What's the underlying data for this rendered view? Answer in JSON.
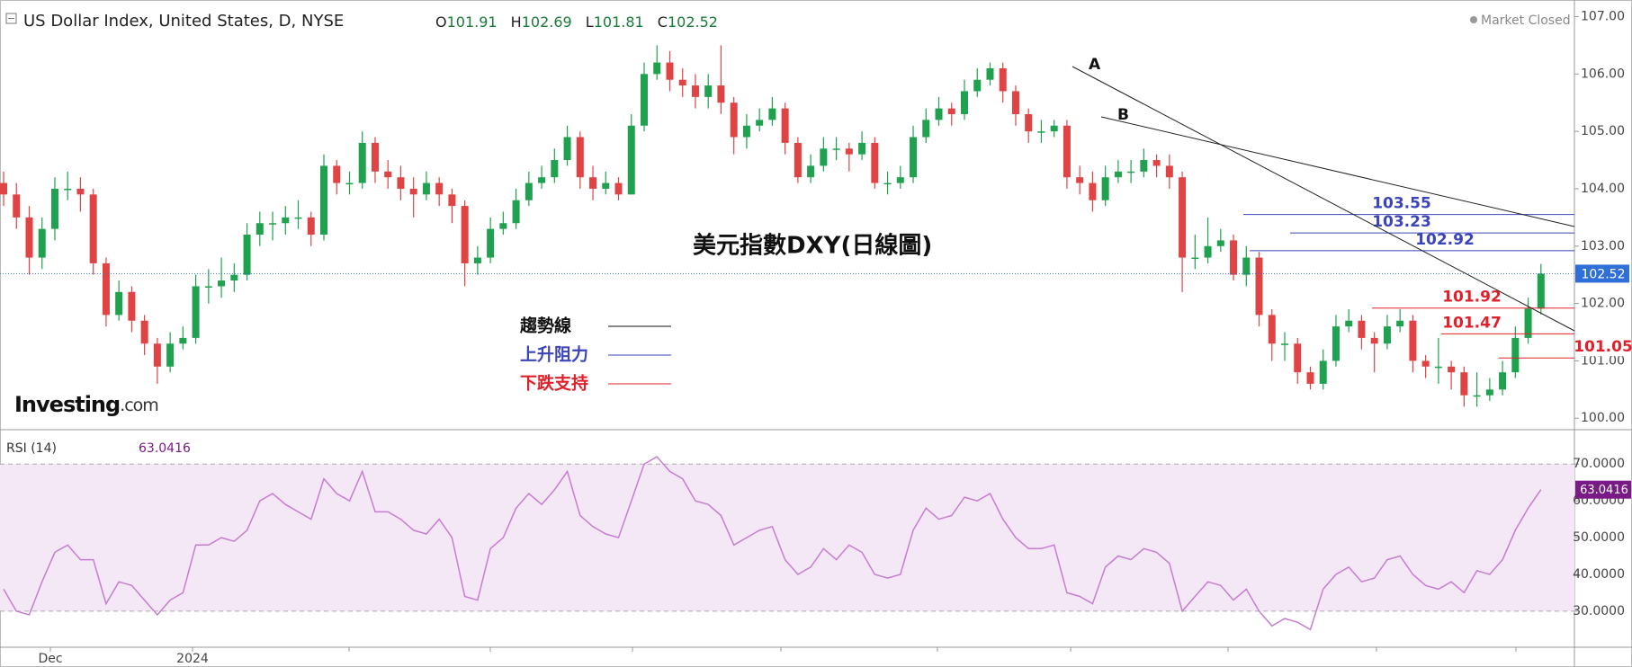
{
  "header": {
    "title": "US Dollar Index, United States, D, NYSE",
    "ohlc_labels": [
      "O",
      "H",
      "L",
      "C"
    ],
    "market_status": "Market Closed",
    "logo": "Investing",
    "logo_suffix": ".com"
  },
  "chart_data": [
    {
      "type": "candlestick",
      "title": "美元指數DXY(日線圖)",
      "up_color": "#1fa14f",
      "down_color": "#e04343",
      "open": [
        104.1,
        103.9,
        103.5,
        102.8,
        103.3,
        104.0,
        104.0,
        103.9,
        102.7,
        101.8,
        102.2,
        101.7,
        101.3,
        100.9,
        101.3,
        101.4,
        102.3,
        102.3,
        102.4,
        102.5,
        103.2,
        103.4,
        103.4,
        103.5,
        103.5,
        103.2,
        104.4,
        104.1,
        104.1,
        104.8,
        104.3,
        104.2,
        104.0,
        103.9,
        104.1,
        103.9,
        103.7,
        102.7,
        102.8,
        103.3,
        103.4,
        103.8,
        104.1,
        104.2,
        104.5,
        104.9,
        104.2,
        104.0,
        104.1,
        103.9,
        105.1,
        106.0,
        106.2,
        105.9,
        105.8,
        105.6,
        105.8,
        105.5,
        104.9,
        105.1,
        105.2,
        105.4,
        104.8,
        104.2,
        104.4,
        104.7,
        104.7,
        104.6,
        104.8,
        104.1,
        104.1,
        104.2,
        104.9,
        105.2,
        105.4,
        105.3,
        105.7,
        105.9,
        106.1,
        105.7,
        105.3,
        105.0,
        105.0,
        105.1,
        104.2,
        104.1,
        103.8,
        104.2,
        104.3,
        104.3,
        104.5,
        104.4,
        104.2,
        102.8,
        102.8,
        103.0,
        103.1,
        102.5,
        102.8,
        101.8,
        101.3,
        101.3,
        100.8,
        100.6,
        101.0,
        101.6,
        101.7,
        101.4,
        101.3,
        101.6,
        101.7,
        101.0,
        100.9,
        100.9,
        100.8,
        100.4,
        100.4,
        100.5,
        100.8,
        101.4,
        101.91
      ],
      "high": [
        104.3,
        104.1,
        103.7,
        103.5,
        104.2,
        104.3,
        104.2,
        104.0,
        102.8,
        102.4,
        102.3,
        101.8,
        101.4,
        101.5,
        101.6,
        102.5,
        102.6,
        102.8,
        102.7,
        103.4,
        103.6,
        103.6,
        103.7,
        103.8,
        103.6,
        104.6,
        104.5,
        104.3,
        105.0,
        104.9,
        104.5,
        104.4,
        104.2,
        104.3,
        104.2,
        104.0,
        103.8,
        103.0,
        103.5,
        103.6,
        104.0,
        104.3,
        104.4,
        104.7,
        105.1,
        105.0,
        104.4,
        104.3,
        104.2,
        105.3,
        106.2,
        106.5,
        106.4,
        106.1,
        106.0,
        106.0,
        106.5,
        105.6,
        105.3,
        105.4,
        105.6,
        105.5,
        104.9,
        104.6,
        104.9,
        104.9,
        104.8,
        105.0,
        104.9,
        104.3,
        104.4,
        105.1,
        105.4,
        105.6,
        105.5,
        105.9,
        106.1,
        106.2,
        106.2,
        105.8,
        105.4,
        105.2,
        105.2,
        105.2,
        104.4,
        104.3,
        104.4,
        104.5,
        104.5,
        104.7,
        104.6,
        104.6,
        104.3,
        103.2,
        103.5,
        103.3,
        103.2,
        103.0,
        102.9,
        101.9,
        101.5,
        101.4,
        100.9,
        101.2,
        101.8,
        101.9,
        101.8,
        101.5,
        101.8,
        101.9,
        101.8,
        101.1,
        101.4,
        101.0,
        100.9,
        100.8,
        100.7,
        101.0,
        101.6,
        102.1,
        102.69
      ],
      "low": [
        103.7,
        103.3,
        102.5,
        102.6,
        103.1,
        103.8,
        103.6,
        102.5,
        101.6,
        101.7,
        101.5,
        101.1,
        100.6,
        100.8,
        101.2,
        101.3,
        102.0,
        102.1,
        102.2,
        102.4,
        103.0,
        103.1,
        103.2,
        103.3,
        103.0,
        103.1,
        103.9,
        103.9,
        104.0,
        104.1,
        104.0,
        103.8,
        103.5,
        103.8,
        103.7,
        103.4,
        102.3,
        102.5,
        102.7,
        103.2,
        103.3,
        103.7,
        104.0,
        104.1,
        104.4,
        104.0,
        103.8,
        103.9,
        103.8,
        103.9,
        105.0,
        105.9,
        105.7,
        105.6,
        105.4,
        105.4,
        105.3,
        104.6,
        104.7,
        105.0,
        105.1,
        104.6,
        104.1,
        104.1,
        104.3,
        104.5,
        104.3,
        104.5,
        104.0,
        103.9,
        104.0,
        104.1,
        104.8,
        105.1,
        105.1,
        105.2,
        105.6,
        105.8,
        105.5,
        105.1,
        104.8,
        104.8,
        104.9,
        104.0,
        103.9,
        103.6,
        103.7,
        104.1,
        104.1,
        104.2,
        104.2,
        104.0,
        102.2,
        102.6,
        102.7,
        102.9,
        102.4,
        102.3,
        101.6,
        101.0,
        101.0,
        100.6,
        100.5,
        100.5,
        100.9,
        101.5,
        101.2,
        100.8,
        101.2,
        101.5,
        100.8,
        100.7,
        100.6,
        100.5,
        100.2,
        100.2,
        100.3,
        100.4,
        100.7,
        101.3,
        101.81
      ],
      "close": [
        103.9,
        103.5,
        102.8,
        103.3,
        104.0,
        104.0,
        103.9,
        102.7,
        101.8,
        102.2,
        101.7,
        101.3,
        100.9,
        101.3,
        101.4,
        102.3,
        102.3,
        102.4,
        102.5,
        103.2,
        103.4,
        103.4,
        103.5,
        103.5,
        103.2,
        104.4,
        104.1,
        104.1,
        104.8,
        104.3,
        104.2,
        104.0,
        103.9,
        104.1,
        103.9,
        103.7,
        102.7,
        102.8,
        103.3,
        103.4,
        103.8,
        104.1,
        104.2,
        104.5,
        104.9,
        104.2,
        104.0,
        104.1,
        103.9,
        105.1,
        106.0,
        106.2,
        105.9,
        105.8,
        105.6,
        105.8,
        105.5,
        104.9,
        105.1,
        105.2,
        105.4,
        104.8,
        104.2,
        104.4,
        104.7,
        104.7,
        104.6,
        104.8,
        104.1,
        104.1,
        104.2,
        104.9,
        105.2,
        105.4,
        105.3,
        105.7,
        105.9,
        106.1,
        105.7,
        105.3,
        105.0,
        105.0,
        105.1,
        104.2,
        104.1,
        103.8,
        104.2,
        104.3,
        104.3,
        104.5,
        104.4,
        104.2,
        102.8,
        102.8,
        103.0,
        103.1,
        102.5,
        102.8,
        101.8,
        101.3,
        101.3,
        100.8,
        100.6,
        101.0,
        101.6,
        101.7,
        101.4,
        101.3,
        101.6,
        101.7,
        101.0,
        100.9,
        100.9,
        100.8,
        100.4,
        100.4,
        100.5,
        100.8,
        101.4,
        101.91,
        102.52
      ],
      "ylim": [
        99.8,
        107.29
      ],
      "yticks": [
        {
          "value": 100,
          "label": "100.00"
        },
        {
          "value": 101,
          "label": "101.00"
        },
        {
          "value": 102,
          "label": "102.00"
        },
        {
          "value": 103,
          "label": "103.00"
        },
        {
          "value": 104,
          "label": "104.00"
        },
        {
          "value": 105,
          "label": "105.00"
        },
        {
          "value": 106,
          "label": "106.00"
        },
        {
          "value": 107,
          "label": "107.00"
        }
      ],
      "x_labels": [
        "Dec",
        "2024"
      ],
      "resistance": [
        103.55,
        103.23,
        102.92
      ],
      "resistance_color": "#3b44b8",
      "support": [
        101.92,
        101.47,
        101.05
      ],
      "support_color": "#e0202a",
      "trendline_labels": [
        "A",
        "B"
      ],
      "trendline_color": "#222",
      "last_price_color": "#2f6fd8",
      "legend": [
        {
          "label": "趨勢線",
          "color": "#111"
        },
        {
          "label": "上升阻力",
          "color": "#3b44b8"
        },
        {
          "label": "下跌支持",
          "color": "#e0202a"
        }
      ]
    },
    {
      "type": "line",
      "name": "RSI (14)",
      "color": "#c67ed0",
      "band": [
        30,
        70
      ],
      "band_color": "#f4e7f6",
      "values": [
        36,
        30,
        29,
        38,
        46,
        48,
        44,
        44,
        32,
        38,
        37,
        33,
        29,
        33,
        35,
        48,
        48,
        50,
        49,
        52,
        60,
        62,
        59,
        57,
        55,
        66,
        62,
        60,
        68,
        57,
        57,
        55,
        52,
        51,
        55,
        50,
        34,
        33,
        47,
        50,
        58,
        62,
        59,
        63,
        68,
        56,
        53,
        51,
        50,
        60,
        70,
        72,
        68,
        66,
        60,
        59,
        56,
        48,
        50,
        52,
        53,
        44,
        40,
        42,
        47,
        44,
        48,
        46,
        40,
        39,
        40,
        52,
        58,
        55,
        56,
        61,
        60,
        62,
        55,
        50,
        47,
        47,
        48,
        35,
        34,
        32,
        42,
        45,
        44,
        47,
        46,
        43,
        30,
        34,
        38,
        37,
        33,
        36,
        30,
        26,
        28,
        27,
        25,
        36,
        40,
        42,
        38,
        39,
        44,
        45,
        40,
        37,
        36,
        38,
        35,
        41,
        40,
        44,
        52,
        58,
        63.0416
      ],
      "ylim": [
        20.2,
        79.1
      ],
      "yticks": [
        {
          "value": 30,
          "label": "30.0000"
        },
        {
          "value": 40,
          "label": "40.0000"
        },
        {
          "value": 50,
          "label": "50.0000"
        },
        {
          "value": 60,
          "label": "60.0000"
        },
        {
          "value": 70,
          "label": "70.0000"
        }
      ]
    }
  ]
}
